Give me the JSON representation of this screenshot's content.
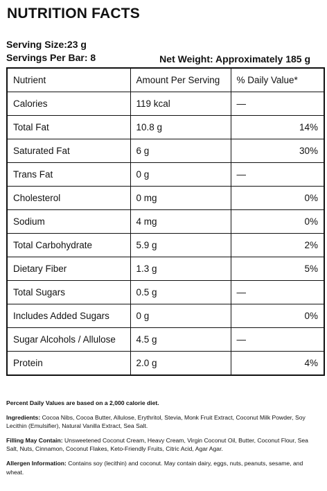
{
  "title": "NUTRITION FACTS",
  "serving": {
    "size_label": "Serving Size:23 g",
    "per_bar_label": "Servings Per Bar: 8",
    "net_weight_label": "Net Weight: Approximately 185 g"
  },
  "table": {
    "headers": [
      "Nutrient",
      "Amount Per Serving",
      "% Daily Value*"
    ],
    "rows": [
      {
        "nutrient": "Calories",
        "amount": "119 kcal",
        "dv": "—"
      },
      {
        "nutrient": "Total Fat",
        "amount": "10.8 g",
        "dv": "14%"
      },
      {
        "nutrient": "Saturated Fat",
        "amount": "6 g",
        "dv": "30%"
      },
      {
        "nutrient": "Trans Fat",
        "amount": "0 g",
        "dv": "—"
      },
      {
        "nutrient": "Cholesterol",
        "amount": "0 mg",
        "dv": "0%"
      },
      {
        "nutrient": "Sodium",
        "amount": "4 mg",
        "dv": "0%"
      },
      {
        "nutrient": "Total Carbohydrate",
        "amount": "5.9 g",
        "dv": "2%"
      },
      {
        "nutrient": "Dietary Fiber",
        "amount": "1.3 g",
        "dv": "5%"
      },
      {
        "nutrient": "Total Sugars",
        "amount": "0.5 g",
        "dv": "—"
      },
      {
        "nutrient": "Includes Added Sugars",
        "amount": "0 g",
        "dv": "0%"
      },
      {
        "nutrient": "Sugar Alcohols / Allulose",
        "amount": "4.5 g",
        "dv": "—"
      },
      {
        "nutrient": "Protein",
        "amount": "2.0 g",
        "dv": "4%"
      }
    ]
  },
  "notes": {
    "percent_dv": "Percent Daily Values are based on a 2,000 calorie diet.",
    "ingredients_label": "Ingredients:",
    "ingredients": "Cocoa Nibs, Cocoa Butter, Allulose, Erythritol, Stevia, Monk Fruit Extract, Coconut Milk Powder, Soy Lecithin (Emulsifier), Natural Vanilla Extract, Sea Salt.",
    "filling_label": "Filling May Contain:",
    "filling": "Unsweetened Coconut Cream, Heavy Cream, Virgin Coconut Oil, Butter, Coconut Flour, Sea Salt, Nuts, Cinnamon, Coconut Flakes, Keto-Friendly Fruits, Citric Acid, Agar Agar.",
    "allergen_label": "Allergen Information:",
    "allergen": "Contains soy (lecithin) and coconut. May contain dairy, eggs, nuts, peanuts, sesame, and wheat."
  }
}
